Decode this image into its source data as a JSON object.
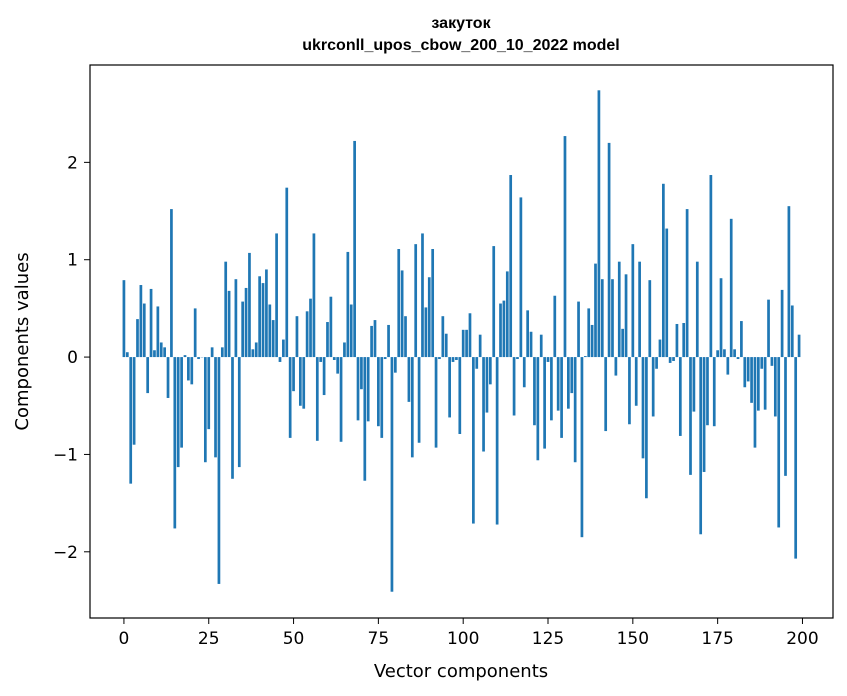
{
  "chart_data": {
    "type": "bar",
    "title": "закуток",
    "subtitle": "ukrconll_upos_cbow_200_10_2022 model",
    "xlabel": "Vector components",
    "ylabel": "Components values",
    "xlim": [
      -10,
      209
    ],
    "ylim": [
      -2.68,
      3.0
    ],
    "xticks": [
      0,
      25,
      50,
      75,
      100,
      125,
      150,
      175,
      200
    ],
    "xtick_labels": [
      "0",
      "25",
      "50",
      "75",
      "100",
      "125",
      "150",
      "175",
      "200"
    ],
    "yticks": [
      -2,
      -1,
      0,
      1,
      2
    ],
    "ytick_labels": [
      "−2",
      "−1",
      "0",
      "1",
      "2"
    ],
    "grid": false,
    "legend": false,
    "bar_color": "#1f77b4",
    "x": [
      0,
      1,
      2,
      3,
      4,
      5,
      6,
      7,
      8,
      9,
      10,
      11,
      12,
      13,
      14,
      15,
      16,
      17,
      18,
      19,
      20,
      21,
      22,
      23,
      24,
      25,
      26,
      27,
      28,
      29,
      30,
      31,
      32,
      33,
      34,
      35,
      36,
      37,
      38,
      39,
      40,
      41,
      42,
      43,
      44,
      45,
      46,
      47,
      48,
      49,
      50,
      51,
      52,
      53,
      54,
      55,
      56,
      57,
      58,
      59,
      60,
      61,
      62,
      63,
      64,
      65,
      66,
      67,
      68,
      69,
      70,
      71,
      72,
      73,
      74,
      75,
      76,
      77,
      78,
      79,
      80,
      81,
      82,
      83,
      84,
      85,
      86,
      87,
      88,
      89,
      90,
      91,
      92,
      93,
      94,
      95,
      96,
      97,
      98,
      99,
      100,
      101,
      102,
      103,
      104,
      105,
      106,
      107,
      108,
      109,
      110,
      111,
      112,
      113,
      114,
      115,
      116,
      117,
      118,
      119,
      120,
      121,
      122,
      123,
      124,
      125,
      126,
      127,
      128,
      129,
      130,
      131,
      132,
      133,
      134,
      135,
      136,
      137,
      138,
      139,
      140,
      141,
      142,
      143,
      144,
      145,
      146,
      147,
      148,
      149,
      150,
      151,
      152,
      153,
      154,
      155,
      156,
      157,
      158,
      159,
      160,
      161,
      162,
      163,
      164,
      165,
      166,
      167,
      168,
      169,
      170,
      171,
      172,
      173,
      174,
      175,
      176,
      177,
      178,
      179,
      180,
      181,
      182,
      183,
      184,
      185,
      186,
      187,
      188,
      189,
      190,
      191,
      192,
      193,
      194,
      195,
      196,
      197,
      198,
      199
    ],
    "values": [
      0.79,
      0.05,
      -1.3,
      -0.9,
      0.39,
      0.74,
      0.55,
      -0.37,
      0.7,
      0.07,
      0.52,
      0.15,
      0.1,
      -0.42,
      1.52,
      -1.76,
      -1.13,
      -0.93,
      0.02,
      -0.24,
      -0.28,
      0.5,
      -0.02,
      0.0,
      -1.08,
      -0.74,
      0.1,
      -1.03,
      -2.33,
      0.1,
      0.98,
      0.68,
      -1.25,
      0.8,
      -1.13,
      0.57,
      0.71,
      1.07,
      0.08,
      0.15,
      0.83,
      0.76,
      0.9,
      0.54,
      0.38,
      1.27,
      -0.05,
      0.18,
      1.74,
      -0.83,
      -0.35,
      0.42,
      -0.5,
      -0.53,
      0.47,
      0.6,
      1.27,
      -0.86,
      -0.05,
      -0.39,
      0.36,
      0.62,
      -0.03,
      -0.17,
      -0.87,
      0.15,
      1.08,
      0.54,
      2.22,
      -0.65,
      -0.33,
      -1.27,
      -0.66,
      0.32,
      0.38,
      -0.71,
      -0.83,
      -0.02,
      0.33,
      -2.41,
      -0.16,
      1.11,
      0.89,
      0.42,
      -0.46,
      -1.03,
      1.16,
      -0.88,
      1.27,
      0.51,
      0.82,
      1.11,
      -0.93,
      -0.02,
      0.42,
      0.24,
      -0.62,
      -0.05,
      -0.03,
      -0.79,
      0.28,
      0.28,
      0.45,
      -1.71,
      -0.12,
      0.23,
      -0.97,
      -0.57,
      -0.28,
      1.14,
      -1.72,
      0.55,
      0.58,
      0.88,
      1.87,
      -0.6,
      -0.02,
      1.64,
      -0.31,
      0.48,
      0.26,
      -0.7,
      -1.06,
      0.23,
      -0.94,
      -0.05,
      -0.65,
      0.63,
      -0.55,
      -0.83,
      2.27,
      -0.53,
      -0.37,
      -1.08,
      0.57,
      -1.85,
      0.01,
      0.5,
      0.33,
      0.96,
      2.74,
      0.8,
      -0.76,
      2.2,
      0.8,
      -0.19,
      0.98,
      0.29,
      0.85,
      -0.69,
      1.16,
      -0.5,
      0.98,
      -1.04,
      -1.45,
      0.79,
      -0.61,
      -0.12,
      0.18,
      1.78,
      1.32,
      -0.06,
      -0.04,
      0.34,
      -0.81,
      0.35,
      1.52,
      -1.21,
      -0.56,
      0.98,
      -1.82,
      -1.18,
      -0.7,
      1.87,
      -0.71,
      0.07,
      0.81,
      0.08,
      -0.18,
      1.42,
      0.08,
      -0.02,
      0.37,
      -0.31,
      -0.25,
      -0.47,
      -0.93,
      -0.55,
      -0.12,
      -0.54,
      0.59,
      -0.09,
      -0.61,
      -1.75,
      0.69,
      -1.22,
      1.55,
      0.53,
      -2.07,
      0.23
    ]
  }
}
